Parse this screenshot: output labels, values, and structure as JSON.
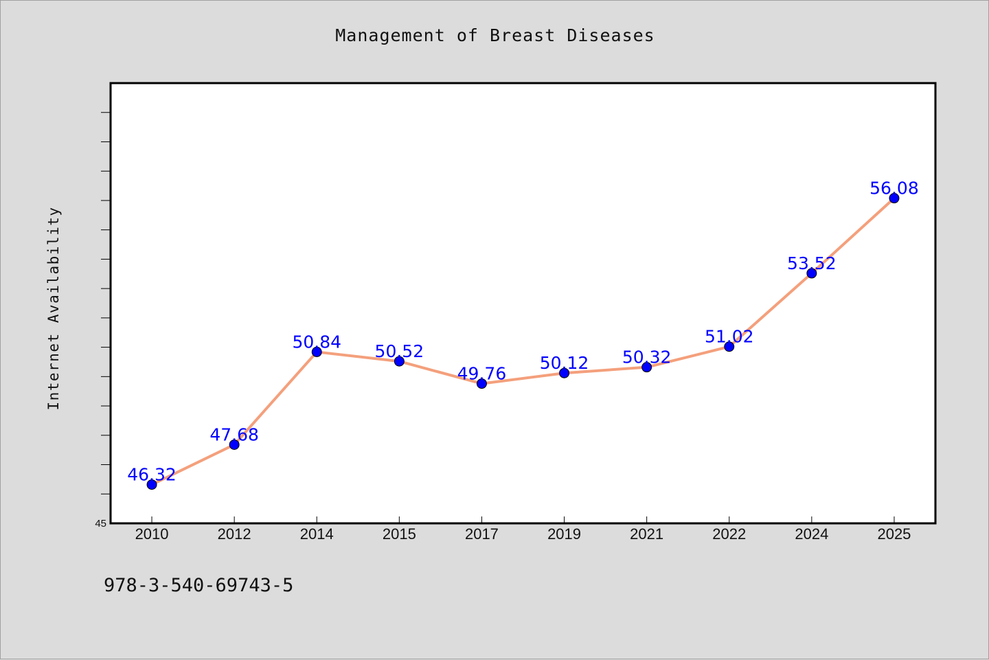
{
  "figure": {
    "title": "Management of Breast Diseases",
    "ylabel": "Internet Availability",
    "footnote": "978-3-540-69743-5"
  },
  "colors": {
    "background": "#dcdcdc",
    "plot_area": "#ffffff",
    "line": "#f4a07c",
    "marker": "#0000ff",
    "label_text": "#0000ff"
  },
  "chart_data": {
    "type": "line",
    "title": "Management of Breast Diseases",
    "xlabel": "",
    "ylabel": "Internet Availability",
    "categories": [
      "2010",
      "2012",
      "2014",
      "2015",
      "2017",
      "2019",
      "2021",
      "2022",
      "2024",
      "2025"
    ],
    "series": [
      {
        "values": [
          46.32,
          47.68,
          50.84,
          50.52,
          49.76,
          50.12,
          50.32,
          51.02,
          53.52,
          56.08
        ],
        "data_labels": [
          "46.32",
          "47.68",
          "50.84",
          "50.52",
          "49.76",
          "50.12",
          "50.32",
          "51.02",
          "53.52",
          "56.08"
        ]
      }
    ],
    "ylim": [
      45,
      60
    ],
    "y_tick_labels": [
      "45"
    ],
    "y_minor_step": 1,
    "grid": false,
    "legend": "none",
    "markers": "filled circle"
  }
}
